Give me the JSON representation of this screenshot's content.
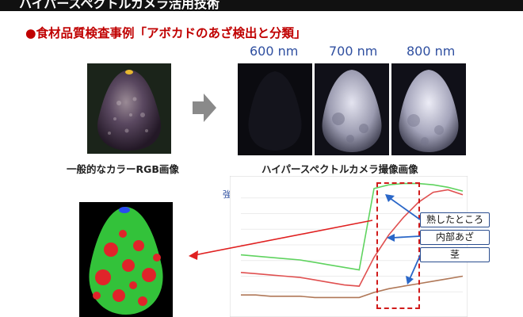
{
  "header": {
    "banner_fragment": "ハイパースペクトルカメラ活用技術"
  },
  "section": {
    "title": "●食材品質検査事例「アボカドのあざ検出と分類」"
  },
  "wavelengths": [
    "600 nm",
    "700 nm",
    "800 nm"
  ],
  "captions": {
    "rgb": "一般的なカラーRGB画像",
    "hyperspectral": "ハイパースペクトルカメラ撮像画像"
  },
  "chart": {
    "axis_label": "強度",
    "callouts": [
      "熟したところ",
      "内部あざ",
      "茎"
    ]
  },
  "colors": {
    "accent_red": "#c00000",
    "wavelength_blue": "#2f4fa0",
    "callout_border": "#2a4d8f",
    "series_green": "#5fd35f",
    "series_red": "#e05050",
    "series_brown": "#b07858"
  },
  "chart_data": {
    "type": "line",
    "ylabel": "強度",
    "series": [
      {
        "values": [
          0.42,
          0.41,
          0.4,
          0.39,
          0.38,
          0.36,
          0.34,
          0.32,
          0.3,
          0.95,
          0.98,
          0.99,
          0.99,
          0.98,
          0.96,
          0.93
        ]
      },
      {
        "values": [
          0.28,
          0.27,
          0.26,
          0.25,
          0.24,
          0.22,
          0.2,
          0.18,
          0.17,
          0.4,
          0.58,
          0.72,
          0.84,
          0.92,
          0.94,
          0.9
        ]
      },
      {
        "values": [
          0.1,
          0.1,
          0.09,
          0.09,
          0.09,
          0.08,
          0.08,
          0.08,
          0.08,
          0.12,
          0.15,
          0.17,
          0.19,
          0.21,
          0.23,
          0.25
        ]
      }
    ]
  }
}
